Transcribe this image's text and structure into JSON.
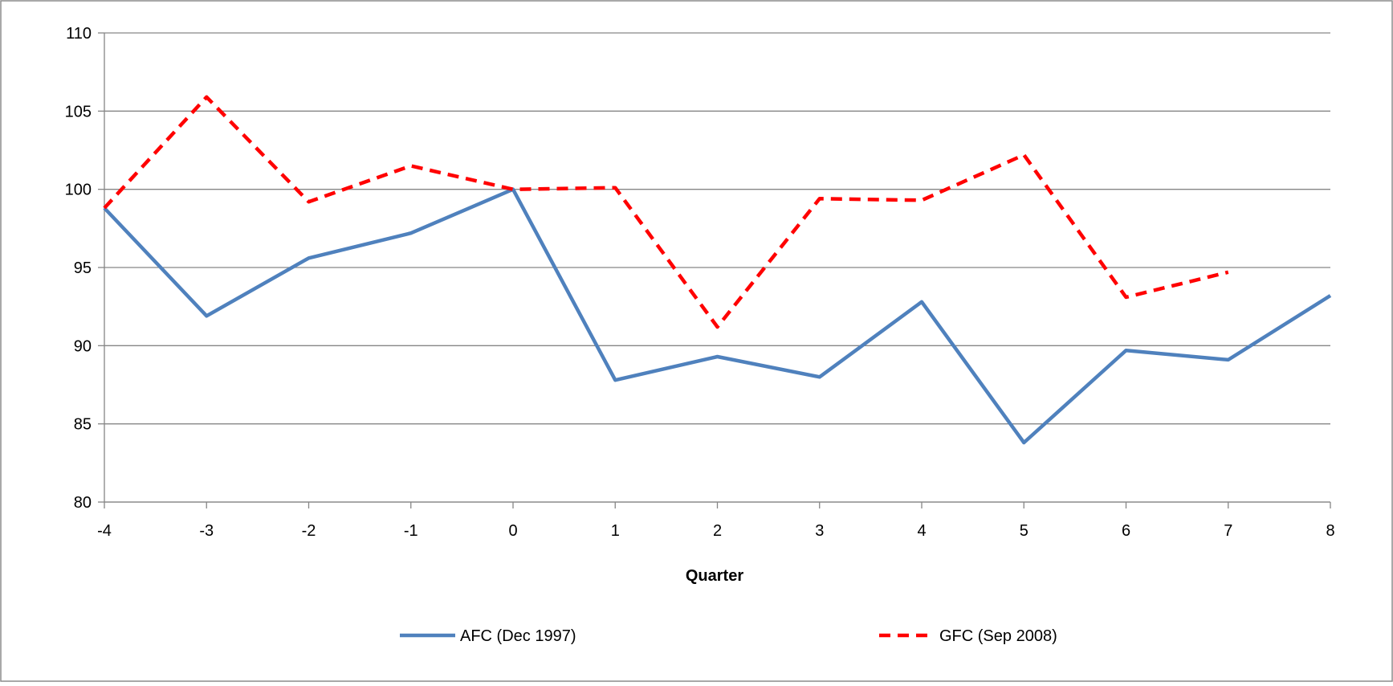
{
  "chart_data": {
    "type": "line",
    "title": "",
    "xlabel": "Quarter",
    "ylabel": "",
    "x": [
      -4,
      -3,
      -2,
      -1,
      0,
      1,
      2,
      3,
      4,
      5,
      6,
      7,
      8
    ],
    "xticks": [
      "-4",
      "-3",
      "-2",
      "-1",
      "0",
      "1",
      "2",
      "3",
      "4",
      "5",
      "6",
      "7",
      "8"
    ],
    "yticks": [
      "80",
      "85",
      "90",
      "95",
      "100",
      "105",
      "110"
    ],
    "ylim": [
      80,
      110
    ],
    "xlim": [
      -4,
      8
    ],
    "grid": "horizontal",
    "legend_position": "bottom",
    "series": [
      {
        "name": "AFC (Dec 1997)",
        "color": "#4F81BD",
        "style": "solid",
        "values": [
          98.8,
          91.9,
          95.6,
          97.2,
          100.0,
          87.8,
          89.3,
          88.0,
          92.8,
          83.8,
          89.7,
          89.1,
          93.2
        ]
      },
      {
        "name": "GFC (Sep 2008)",
        "color": "#FF0000",
        "style": "dashed",
        "values": [
          98.8,
          105.9,
          99.2,
          101.5,
          100.0,
          100.1,
          91.2,
          99.4,
          99.3,
          102.2,
          93.1,
          94.7,
          null
        ]
      }
    ]
  }
}
